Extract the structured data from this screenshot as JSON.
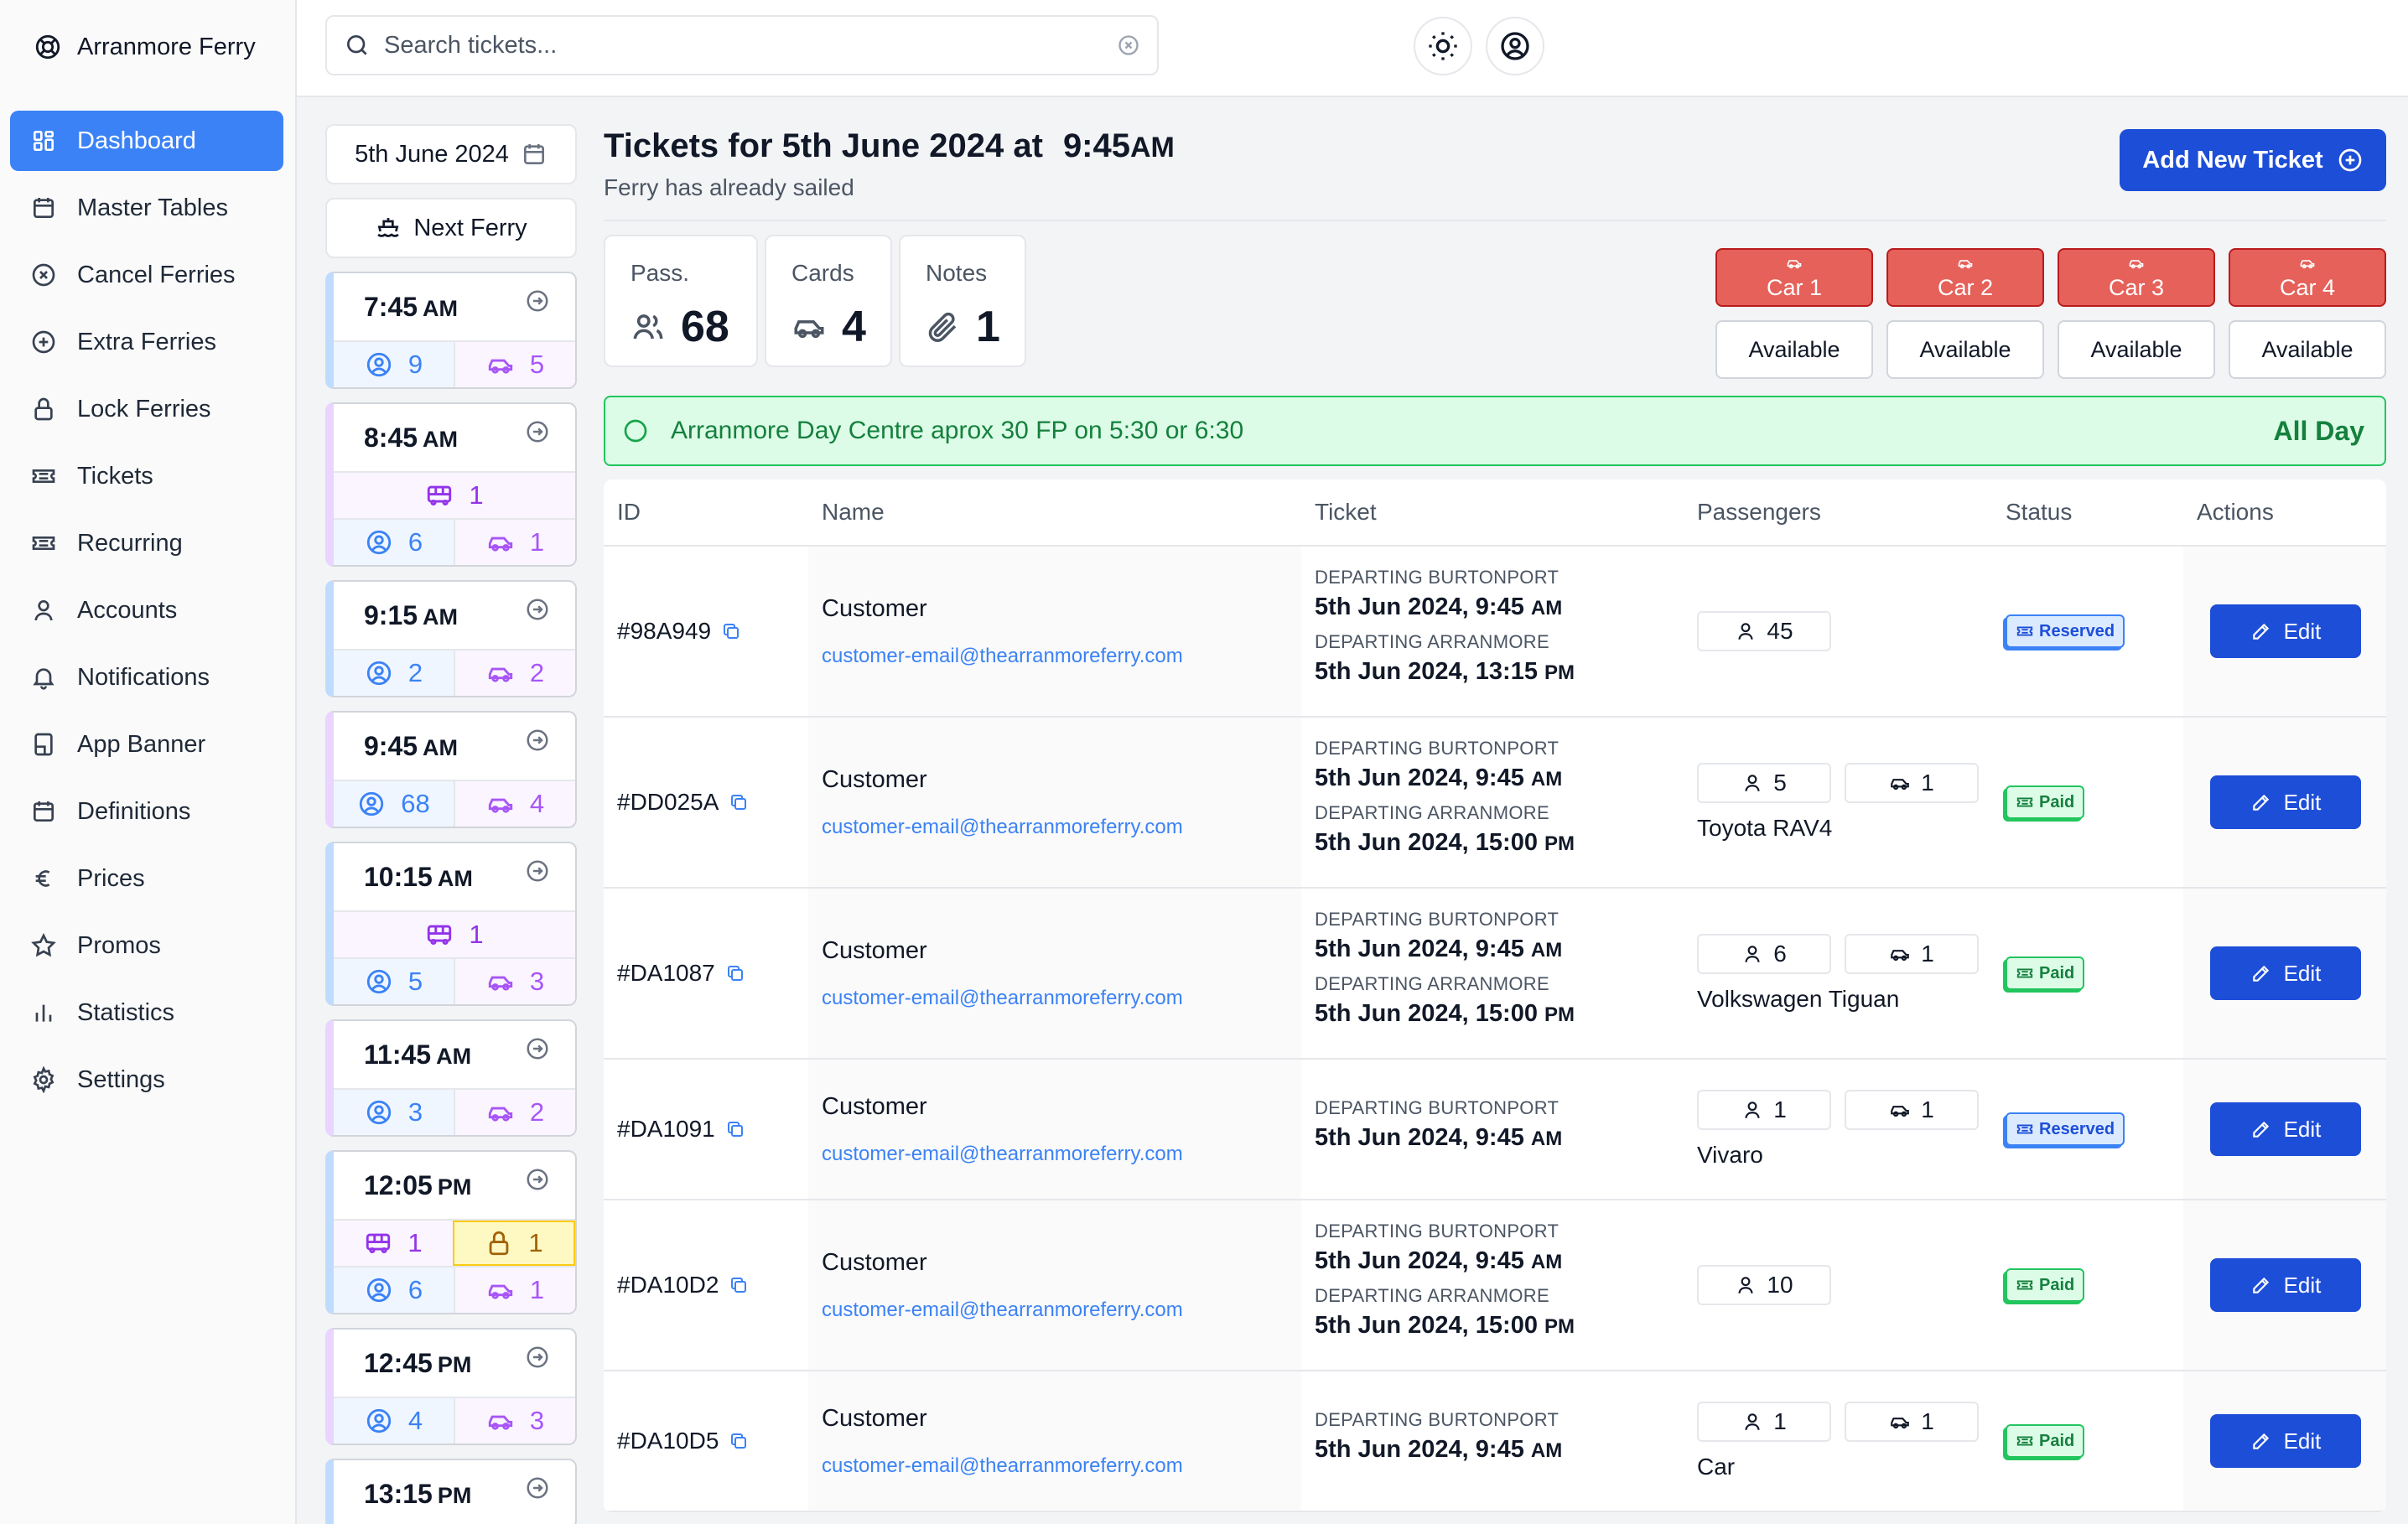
{
  "app": {
    "title": "Arranmore Ferry"
  },
  "sidebar": {
    "items": [
      {
        "label": "Dashboard",
        "icon": "dashboard-icon",
        "active": true
      },
      {
        "label": "Master Tables",
        "icon": "calendar-icon"
      },
      {
        "label": "Cancel Ferries",
        "icon": "x-circle-icon"
      },
      {
        "label": "Extra Ferries",
        "icon": "plus-circle-icon"
      },
      {
        "label": "Lock Ferries",
        "icon": "lock-icon"
      },
      {
        "label": "Tickets",
        "icon": "ticket-icon"
      },
      {
        "label": "Recurring",
        "icon": "ticket-icon"
      },
      {
        "label": "Accounts",
        "icon": "user-icon"
      },
      {
        "label": "Notifications",
        "icon": "bell-icon"
      },
      {
        "label": "App Banner",
        "icon": "banner-icon"
      },
      {
        "label": "Definitions",
        "icon": "calendar-icon"
      },
      {
        "label": "Prices",
        "icon": "euro-icon"
      },
      {
        "label": "Promos",
        "icon": "star-icon"
      },
      {
        "label": "Statistics",
        "icon": "chart-icon"
      },
      {
        "label": "Settings",
        "icon": "gear-icon"
      }
    ]
  },
  "search": {
    "placeholder": "Search tickets...",
    "value": ""
  },
  "datepicker": {
    "label": "5th June 2024"
  },
  "next_ferry": {
    "label": "Next Ferry"
  },
  "ferries": [
    {
      "time": "7:45",
      "ampm": "AM",
      "passengers": "9",
      "cars": "5",
      "color": "blue"
    },
    {
      "time": "8:45",
      "ampm": "AM",
      "bus": "1",
      "passengers": "6",
      "cars": "1",
      "color": "purple"
    },
    {
      "time": "9:15",
      "ampm": "AM",
      "passengers": "2",
      "cars": "2",
      "color": "blue"
    },
    {
      "time": "9:45",
      "ampm": "AM",
      "passengers": "68",
      "cars": "4",
      "color": "purple"
    },
    {
      "time": "10:15",
      "ampm": "AM",
      "bus": "1",
      "passengers": "5",
      "cars": "3",
      "color": "blue"
    },
    {
      "time": "11:45",
      "ampm": "AM",
      "passengers": "3",
      "cars": "2",
      "color": "purple"
    },
    {
      "time": "12:05",
      "ampm": "PM",
      "bus": "1",
      "locked": "1",
      "passengers": "6",
      "cars": "1",
      "color": "blue"
    },
    {
      "time": "12:45",
      "ampm": "PM",
      "passengers": "4",
      "cars": "3",
      "color": "purple"
    },
    {
      "time": "13:15",
      "ampm": "PM",
      "color": "blue"
    }
  ],
  "header": {
    "title": "Tickets for 5th June 2024 at",
    "time": "9:45",
    "ampm": "AM",
    "subtitle": "Ferry has already sailed",
    "add_button": "Add New Ticket"
  },
  "stats": {
    "pass": {
      "label": "Pass.",
      "value": "68"
    },
    "cards": {
      "label": "Cards",
      "value": "4"
    },
    "notes": {
      "label": "Notes",
      "value": "1"
    }
  },
  "cars": [
    {
      "label": "Car 1",
      "status": "Available"
    },
    {
      "label": "Car 2",
      "status": "Available"
    },
    {
      "label": "Car 3",
      "status": "Available"
    },
    {
      "label": "Car 4",
      "status": "Available"
    }
  ],
  "notice": {
    "text": "Arranmore Day Centre aprox 30 FP on 5:30 or 6:30",
    "tag": "All Day"
  },
  "table": {
    "headers": [
      "ID",
      "Name",
      "Ticket",
      "Passengers",
      "Status",
      "Actions"
    ],
    "rows": [
      {
        "id": "#98A949",
        "name": "Customer",
        "email": "customer-email@thearranmoreferry.com",
        "legs": [
          {
            "label": "DEPARTING BURTONPORT",
            "date": "5th Jun 2024, 9:45",
            "ampm": "AM"
          },
          {
            "label": "DEPARTING ARRANMORE",
            "date": "5th Jun 2024, 13:15",
            "ampm": "PM"
          }
        ],
        "passengers": "45",
        "status": "Reserved",
        "action": "Edit"
      },
      {
        "id": "#DD025A",
        "name": "Customer",
        "email": "customer-email@thearranmoreferry.com",
        "legs": [
          {
            "label": "DEPARTING BURTONPORT",
            "date": "5th Jun 2024, 9:45",
            "ampm": "AM"
          },
          {
            "label": "DEPARTING ARRANMORE",
            "date": "5th Jun 2024, 15:00",
            "ampm": "PM"
          }
        ],
        "passengers": "5",
        "cars": "1",
        "vehicle": "Toyota RAV4",
        "status": "Paid",
        "action": "Edit"
      },
      {
        "id": "#DA1087",
        "name": "Customer",
        "email": "customer-email@thearranmoreferry.com",
        "legs": [
          {
            "label": "DEPARTING BURTONPORT",
            "date": "5th Jun 2024, 9:45",
            "ampm": "AM"
          },
          {
            "label": "DEPARTING ARRANMORE",
            "date": "5th Jun 2024, 15:00",
            "ampm": "PM"
          }
        ],
        "passengers": "6",
        "cars": "1",
        "vehicle": "Volkswagen Tiguan",
        "status": "Paid",
        "action": "Edit"
      },
      {
        "id": "#DA1091",
        "name": "Customer",
        "email": "customer-email@thearranmoreferry.com",
        "legs": [
          {
            "label": "DEPARTING BURTONPORT",
            "date": "5th Jun 2024, 9:45",
            "ampm": "AM"
          }
        ],
        "passengers": "1",
        "cars": "1",
        "vehicle": "Vivaro",
        "status": "Reserved",
        "action": "Edit"
      },
      {
        "id": "#DA10D2",
        "name": "Customer",
        "email": "customer-email@thearranmoreferry.com",
        "legs": [
          {
            "label": "DEPARTING BURTONPORT",
            "date": "5th Jun 2024, 9:45",
            "ampm": "AM"
          },
          {
            "label": "DEPARTING ARRANMORE",
            "date": "5th Jun 2024, 15:00",
            "ampm": "PM"
          }
        ],
        "passengers": "10",
        "status": "Paid",
        "action": "Edit"
      },
      {
        "id": "#DA10D5",
        "name": "Customer",
        "email": "customer-email@thearranmoreferry.com",
        "legs": [
          {
            "label": "DEPARTING BURTONPORT",
            "date": "5th Jun 2024, 9:45",
            "ampm": "AM"
          }
        ],
        "passengers": "1",
        "cars": "1",
        "vehicle": "Car",
        "status": "Paid",
        "action": "Edit"
      }
    ]
  },
  "colors": {
    "accent": "#1d4ed8",
    "active_nav": "#3b82f6",
    "car_red": "#e5615a",
    "notice_green": "#dcfce7"
  }
}
